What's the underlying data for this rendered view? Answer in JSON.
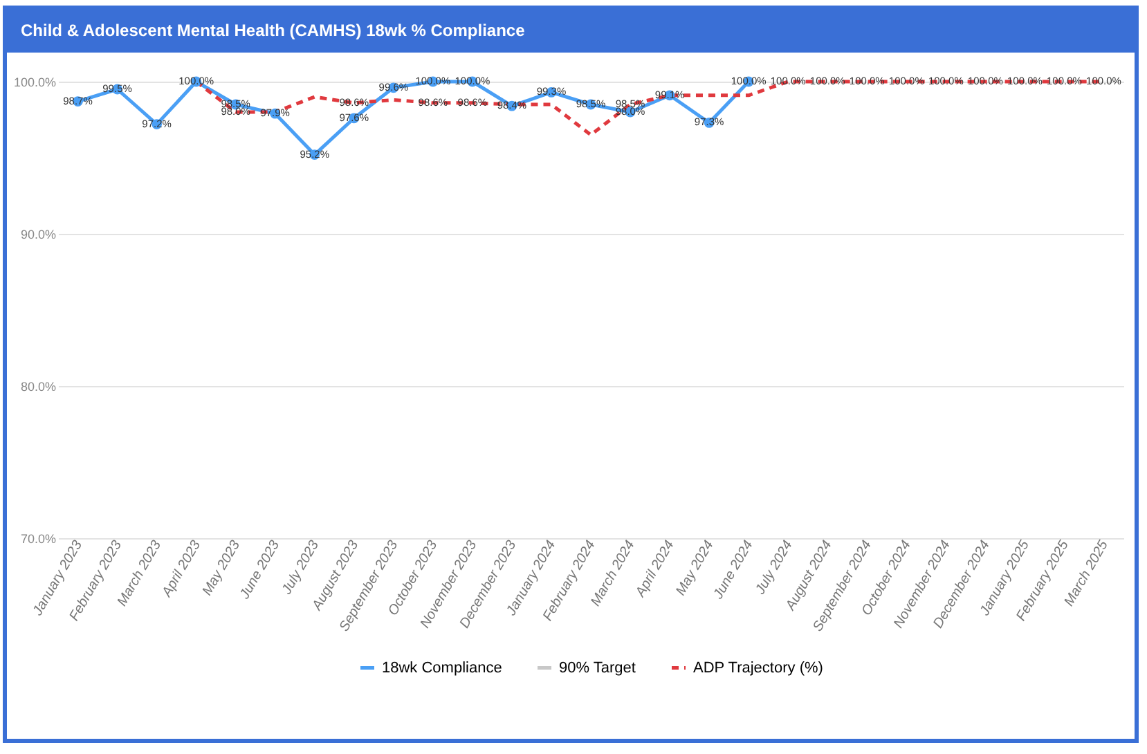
{
  "chart_data": {
    "type": "line",
    "title": "Child & Adolescent Mental Health (CAMHS) 18wk % Compliance",
    "categories": [
      "January 2023",
      "February 2023",
      "March 2023",
      "April 2023",
      "May 2023",
      "June 2023",
      "July 2023",
      "August 2023",
      "September 2023",
      "October 2023",
      "November 2023",
      "December 2023",
      "January 2024",
      "February 2024",
      "March 2024",
      "April 2024",
      "May 2024",
      "June 2024",
      "July 2024",
      "August 2024",
      "September 2024",
      "October 2024",
      "November 2024",
      "December 2024",
      "January 2025",
      "February 2025",
      "March 2025"
    ],
    "series": [
      {
        "name": "18wk Compliance",
        "color": "#4a9ff5",
        "marker": "circle",
        "line_style": "solid",
        "values": [
          98.7,
          99.5,
          97.2,
          100.0,
          98.5,
          97.9,
          95.2,
          97.6,
          99.6,
          100.0,
          100.0,
          98.4,
          99.3,
          98.5,
          98.0,
          99.1,
          97.3,
          100.0,
          null,
          null,
          null,
          null,
          null,
          null,
          null,
          null,
          null
        ],
        "value_labels": [
          "98.7%",
          "99.5%",
          "97.2%",
          "100.0%",
          "98.5%",
          "97.9%",
          "95.2%",
          "97.6%",
          "99.6%",
          "100.0%",
          "100.0%",
          "98.4%",
          "99.3%",
          "98.5%",
          "98.0%",
          "99.1%",
          "97.3%",
          "100.0%",
          null,
          null,
          null,
          null,
          null,
          null,
          null,
          null,
          null
        ]
      },
      {
        "name": "90% Target",
        "color": "#c8c8c8",
        "line_style": "solid",
        "values": [
          null,
          null,
          null,
          null,
          null,
          null,
          null,
          null,
          null,
          null,
          null,
          null,
          null,
          null,
          null,
          null,
          null,
          null,
          null,
          null,
          null,
          null,
          null,
          null,
          null,
          null,
          null
        ]
      },
      {
        "name": "ADP Trajectory (%)",
        "color": "#e0393e",
        "marker": "none",
        "line_style": "dashed",
        "values": [
          null,
          null,
          null,
          100.0,
          98.0,
          98.0,
          99.0,
          98.6,
          98.8,
          98.6,
          98.6,
          98.5,
          98.5,
          96.5,
          98.5,
          99.1,
          99.1,
          99.1,
          100.0,
          100.0,
          100.0,
          100.0,
          100.0,
          100.0,
          100.0,
          100.0,
          100.0
        ],
        "value_labels": [
          null,
          null,
          null,
          null,
          "98.0%",
          null,
          null,
          "98.6%",
          null,
          "98.6%",
          "98.6%",
          null,
          null,
          null,
          "98.5%",
          null,
          null,
          null,
          "100.0%",
          "100.0%",
          "100.0%",
          "100.0%",
          "100.0%",
          "100.0%",
          "100.0%",
          "100.0%",
          "100.0%"
        ]
      }
    ],
    "ylim": [
      70,
      100
    ],
    "yticks": [
      {
        "value": 70,
        "label": "70.0%"
      },
      {
        "value": 80,
        "label": "80.0%"
      },
      {
        "value": 90,
        "label": "90.0%"
      },
      {
        "value": 100,
        "label": "100.0%"
      }
    ],
    "grid": "y",
    "legend": "bottom"
  }
}
